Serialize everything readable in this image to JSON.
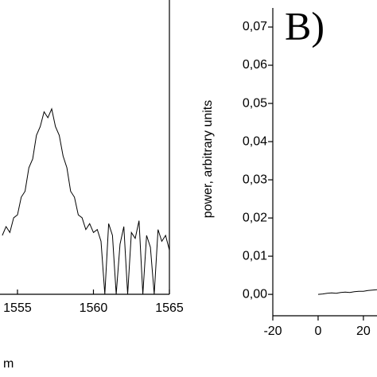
{
  "chart_data": [
    {
      "type": "line",
      "xlabel": "m",
      "x": [
        1554,
        1554.25,
        1554.5,
        1554.75,
        1555,
        1555.25,
        1555.5,
        1555.75,
        1556,
        1556.25,
        1556.5,
        1556.75,
        1557,
        1557.25,
        1557.5,
        1557.75,
        1558,
        1558.25,
        1558.5,
        1558.75,
        1559,
        1559.25,
        1559.5,
        1559.75,
        1560,
        1560.25,
        1560.5,
        1560.75,
        1561,
        1561.25,
        1561.5,
        1561.75,
        1562,
        1562.25,
        1562.5,
        1562.75,
        1563,
        1563.25,
        1563.5,
        1563.75,
        1564,
        1564.25,
        1564.5,
        1564.75,
        1565
      ],
      "values": [
        0.2,
        0.23,
        0.21,
        0.26,
        0.27,
        0.33,
        0.35,
        0.43,
        0.46,
        0.54,
        0.57,
        0.62,
        0.6,
        0.63,
        0.57,
        0.54,
        0.47,
        0.43,
        0.35,
        0.33,
        0.27,
        0.26,
        0.22,
        0.24,
        0.21,
        0.22,
        0.18,
        0,
        0.24,
        0.2,
        0,
        0.17,
        0.23,
        0,
        0.21,
        0.19,
        0.25,
        0,
        0.2,
        0.16,
        0,
        0.22,
        0.18,
        0.2,
        0.15
      ],
      "color": "#000000",
      "xlim": [
        1553.85,
        1565
      ],
      "ylim": [
        0,
        1
      ],
      "xticks": [
        1555,
        1560,
        1565
      ]
    },
    {
      "type": "line",
      "panel_label": "B)",
      "ylabel": "power, arbitrary units",
      "x": [
        0,
        2,
        4,
        6,
        8,
        10,
        12,
        14,
        16,
        18,
        20,
        22,
        24,
        26
      ],
      "values": [
        0,
        0.0001,
        0.0003,
        0.0004,
        0.0003,
        0.0005,
        0.0006,
        0.0005,
        0.0007,
        0.0008,
        0.0008,
        0.001,
        0.0011,
        0.0012
      ],
      "color": "#000000",
      "xlim": [
        -20,
        26
      ],
      "ylim": [
        -0.0056,
        0.075
      ],
      "xticks": [
        -20,
        0,
        20
      ],
      "yticks": [
        {
          "value": 0,
          "label": "0,00"
        },
        {
          "value": 0.01,
          "label": "0,01"
        },
        {
          "value": 0.02,
          "label": "0,02"
        },
        {
          "value": 0.03,
          "label": "0,03"
        },
        {
          "value": 0.04,
          "label": "0,04"
        },
        {
          "value": 0.05,
          "label": "0,05"
        },
        {
          "value": 0.06,
          "label": "0,06"
        },
        {
          "value": 0.07,
          "label": "0,07"
        }
      ]
    }
  ]
}
